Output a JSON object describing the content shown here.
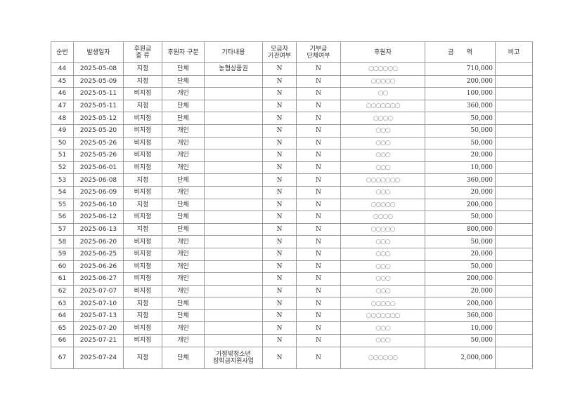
{
  "headers": [
    "순번",
    "발생일자",
    "후원금\n종 류",
    "후원자 구분",
    "기타내용",
    "모금자\n기관여부",
    "기부금\n단체여부",
    "후원자",
    "금　　액",
    "비고"
  ],
  "rows": [
    [
      "44",
      "2025-05-08",
      "지정",
      "단체",
      "농협상품권",
      "N",
      "N",
      "○○○○○○",
      "710,000",
      ""
    ],
    [
      "45",
      "2025-05-09",
      "지정",
      "단체",
      "",
      "N",
      "N",
      "○○○○○",
      "200,000",
      ""
    ],
    [
      "46",
      "2025-05-11",
      "비지정",
      "개인",
      "",
      "N",
      "N",
      "○○",
      "100,000",
      ""
    ],
    [
      "47",
      "2025-05-11",
      "지정",
      "단체",
      "",
      "N",
      "N",
      "○○○○○○○",
      "360,000",
      ""
    ],
    [
      "48",
      "2025-05-12",
      "비지정",
      "단체",
      "",
      "N",
      "N",
      "○○○○",
      "50,000",
      ""
    ],
    [
      "49",
      "2025-05-20",
      "비지정",
      "개인",
      "",
      "N",
      "N",
      "○○○",
      "50,000",
      ""
    ],
    [
      "50",
      "2025-05-26",
      "비지정",
      "개인",
      "",
      "N",
      "N",
      "○○○",
      "50,000",
      ""
    ],
    [
      "51",
      "2025-05-26",
      "비지정",
      "개인",
      "",
      "N",
      "N",
      "○○○",
      "20,000",
      ""
    ],
    [
      "52",
      "2025-06-01",
      "비지정",
      "개인",
      "",
      "N",
      "N",
      "○○○",
      "10,000",
      ""
    ],
    [
      "53",
      "2025-06-08",
      "지정",
      "단체",
      "",
      "N",
      "N",
      "○○○○○○○",
      "360,000",
      ""
    ],
    [
      "54",
      "2025-06-09",
      "비지정",
      "개인",
      "",
      "N",
      "N",
      "○○○",
      "20,000",
      ""
    ],
    [
      "55",
      "2025-06-10",
      "지정",
      "단체",
      "",
      "N",
      "N",
      "○○○○○",
      "200,000",
      ""
    ],
    [
      "56",
      "2025-06-12",
      "비지정",
      "단체",
      "",
      "N",
      "N",
      "○○○○",
      "50,000",
      ""
    ],
    [
      "57",
      "2025-06-13",
      "지정",
      "단체",
      "",
      "N",
      "N",
      "○○○○○",
      "800,000",
      ""
    ],
    [
      "58",
      "2025-06-20",
      "비지정",
      "개인",
      "",
      "N",
      "N",
      "○○○",
      "50,000",
      ""
    ],
    [
      "59",
      "2025-06-25",
      "비지정",
      "개인",
      "",
      "N",
      "N",
      "○○○",
      "20,000",
      ""
    ],
    [
      "60",
      "2025-06-26",
      "비지정",
      "개인",
      "",
      "N",
      "N",
      "○○○",
      "50,000",
      ""
    ],
    [
      "61",
      "2025-06-27",
      "비지정",
      "개인",
      "",
      "N",
      "N",
      "○○○",
      "200,000",
      ""
    ],
    [
      "62",
      "2025-07-07",
      "비지정",
      "개인",
      "",
      "N",
      "N",
      "○○○",
      "20,000",
      ""
    ],
    [
      "63",
      "2025-07-10",
      "지정",
      "단체",
      "",
      "N",
      "N",
      "○○○○○",
      "200,000",
      ""
    ],
    [
      "64",
      "2025-07-13",
      "지정",
      "단체",
      "",
      "N",
      "N",
      "○○○○○○○",
      "360,000",
      ""
    ],
    [
      "65",
      "2025-07-20",
      "비지정",
      "개인",
      "",
      "N",
      "N",
      "○○○",
      "10,000",
      ""
    ],
    [
      "66",
      "2025-07-21",
      "비지정",
      "개인",
      "",
      "N",
      "N",
      "○○○",
      "50,000",
      ""
    ],
    [
      "67",
      "2025-07-24",
      "지정",
      "단체",
      "가정밖청소년\n장학금지원사업",
      "N",
      "N",
      "○○○○○○",
      "2,000,000",
      ""
    ]
  ]
}
